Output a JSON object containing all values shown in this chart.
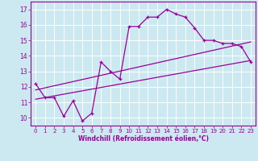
{
  "xlabel": "Windchill (Refroidissement éolien,°C)",
  "bg_color": "#cce8f0",
  "line_color": "#990099",
  "grid_color": "#ffffff",
  "xlim": [
    -0.5,
    23.5
  ],
  "ylim": [
    9.5,
    17.5
  ],
  "yticks": [
    10,
    11,
    12,
    13,
    14,
    15,
    16,
    17
  ],
  "xticks": [
    0,
    1,
    2,
    3,
    4,
    5,
    6,
    7,
    8,
    9,
    10,
    11,
    12,
    13,
    14,
    15,
    16,
    17,
    18,
    19,
    20,
    21,
    22,
    23
  ],
  "curve1_x": [
    0,
    1,
    2,
    3,
    4,
    5,
    6,
    7,
    8,
    9,
    10,
    11,
    12,
    13,
    14,
    15,
    16,
    17,
    18,
    19,
    20,
    21,
    22,
    23
  ],
  "curve1_y": [
    12.2,
    11.3,
    11.3,
    10.1,
    11.1,
    9.8,
    10.3,
    13.6,
    13.0,
    12.5,
    15.9,
    15.9,
    16.5,
    16.5,
    17.0,
    16.7,
    16.5,
    15.8,
    15.0,
    15.0,
    14.8,
    14.8,
    14.6,
    13.6
  ],
  "line1_x": [
    0,
    23
  ],
  "line1_y": [
    11.2,
    13.7
  ],
  "line2_x": [
    0,
    23
  ],
  "line2_y": [
    11.8,
    14.9
  ]
}
